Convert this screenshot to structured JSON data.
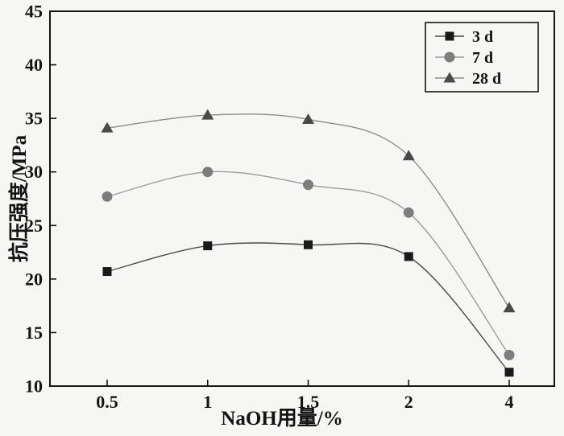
{
  "chart_data": {
    "type": "line",
    "title": "",
    "xlabel": "NaOH用量/%",
    "ylabel": "抗压强度/MPa",
    "categories": [
      "0.5",
      "1",
      "1.5",
      "2",
      "4"
    ],
    "ylim": [
      10,
      45
    ],
    "ytick_step": 5,
    "yticks": [
      10,
      15,
      20,
      25,
      30,
      35,
      40,
      45
    ],
    "grid": false,
    "legend_position": "top-right",
    "series": [
      {
        "name": "3 d",
        "marker": "square",
        "marker_color": "#1a1a1a",
        "line_color": "#4a4a4a",
        "values": [
          20.7,
          23.1,
          23.2,
          22.1,
          11.3
        ]
      },
      {
        "name": "7 d",
        "marker": "circle",
        "marker_color": "#7d7d7d",
        "line_color": "#9b9b9b",
        "values": [
          27.7,
          30.0,
          28.8,
          26.2,
          12.9
        ]
      },
      {
        "name": "28 d",
        "marker": "triangle",
        "marker_color": "#4a4a4a",
        "line_color": "#8c8c8c",
        "values": [
          34.1,
          35.3,
          34.9,
          31.5,
          17.3
        ]
      }
    ]
  }
}
